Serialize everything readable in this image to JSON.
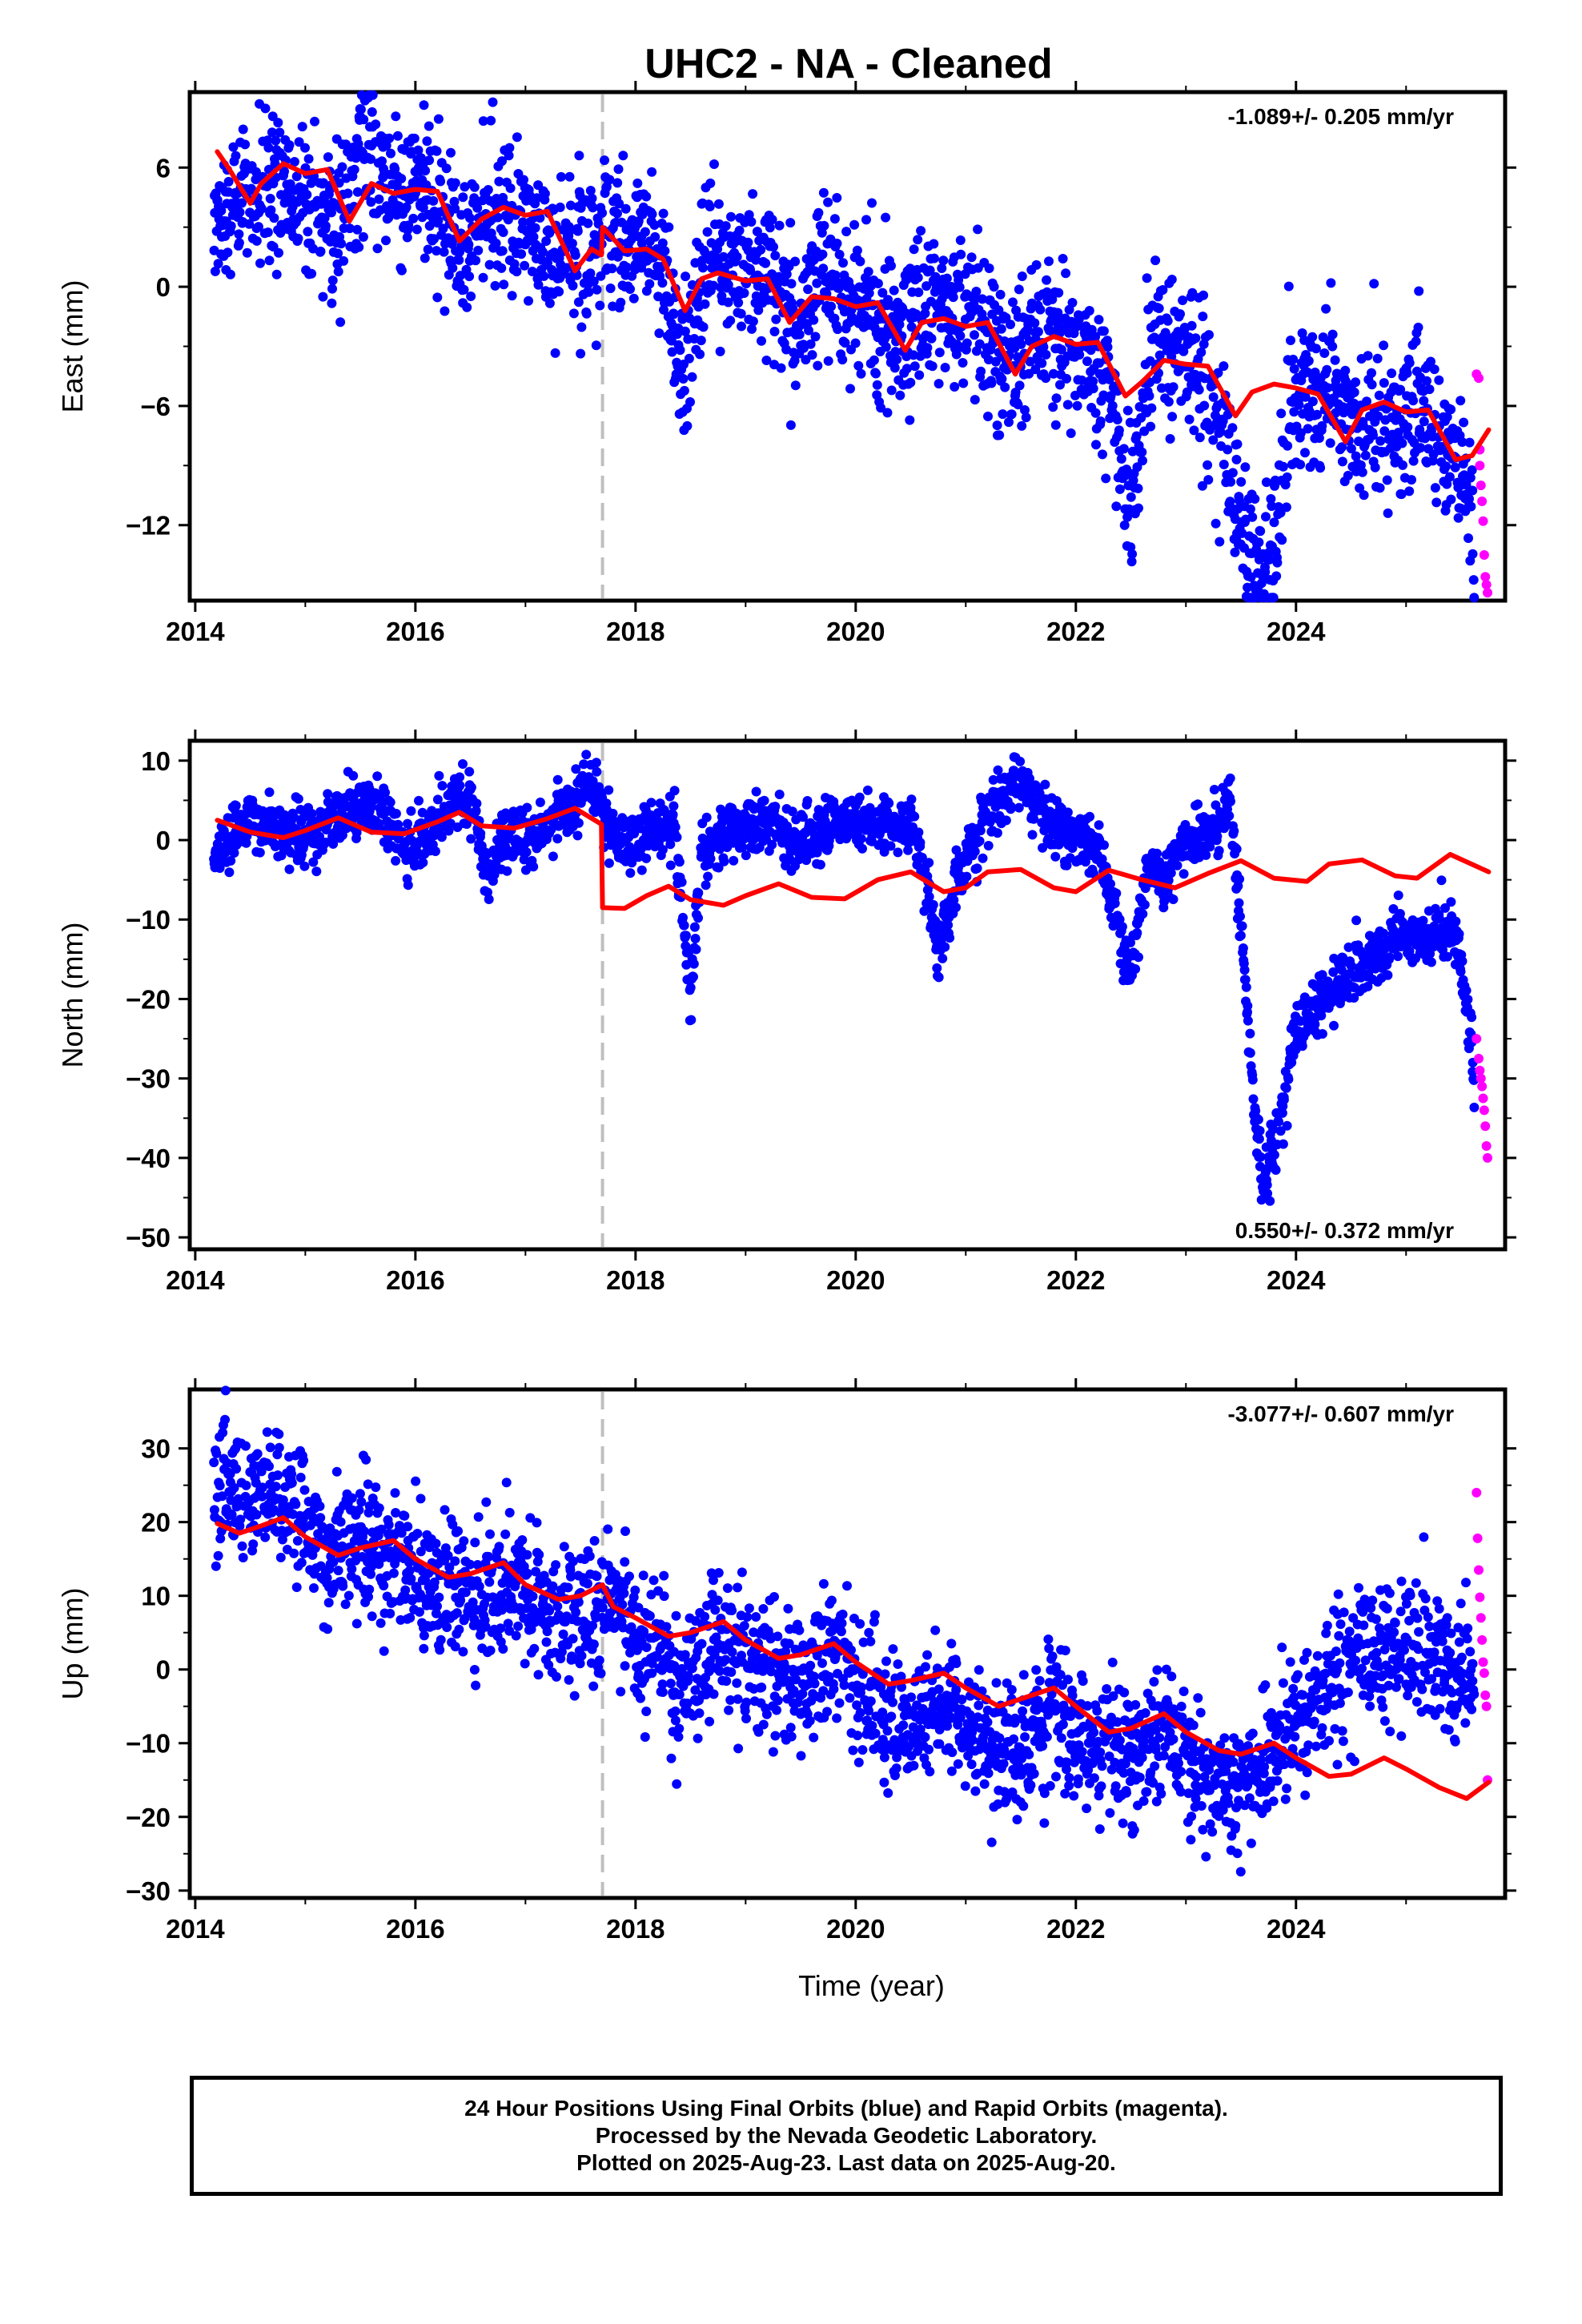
{
  "title": "UHC2  - NA - Cleaned",
  "colors": {
    "final": "#0000ff",
    "rapid": "#ff00ff",
    "model": "#ff0000",
    "offset_line": "#bfbfbf"
  },
  "caption": [
    "24 Hour Positions Using Final Orbits (blue) and Rapid Orbits (magenta).",
    "Processed by the Nevada Geodetic Laboratory.",
    "Plotted on 2025-Aug-23. Last data on 2025-Aug-20."
  ],
  "chart_data": [
    {
      "type": "scatter",
      "name": "east",
      "ylabel": "East (mm)",
      "xlabel": "",
      "xlim": [
        2013.95,
        2025.9
      ],
      "ylim": [
        -15.8,
        9.8
      ],
      "xticks": [
        2014,
        2016,
        2018,
        2020,
        2022,
        2024
      ],
      "yticks": [
        6,
        0,
        -6,
        -12
      ],
      "rate": "-1.089+/- 0.205 mm/yr",
      "rate_position": "top-right",
      "offset_epochs": [
        2017.7
      ],
      "model": {
        "x": [
          2014.2,
          2014.3,
          2014.5,
          2014.6,
          2014.8,
          2015.0,
          2015.2,
          2015.4,
          2015.6,
          2015.8,
          2016.0,
          2016.2,
          2016.4,
          2016.6,
          2016.8,
          2017.0,
          2017.2,
          2017.45,
          2017.6,
          2017.69,
          2017.7,
          2017.9,
          2018.1,
          2018.25,
          2018.45,
          2018.6,
          2018.75,
          2019.0,
          2019.2,
          2019.4,
          2019.6,
          2019.8,
          2020.0,
          2020.2,
          2020.45,
          2020.6,
          2020.8,
          2021.0,
          2021.2,
          2021.45,
          2021.6,
          2021.8,
          2022.0,
          2022.2,
          2022.45,
          2022.6,
          2022.8,
          2023.0,
          2023.2,
          2023.45,
          2023.6,
          2023.8,
          2024.0,
          2024.2,
          2024.45,
          2024.6,
          2024.8,
          2025.0,
          2025.2,
          2025.45,
          2025.6,
          2025.75
        ],
        "y": [
          6.8,
          6.0,
          4.2,
          5.2,
          6.2,
          5.7,
          5.9,
          3.3,
          5.2,
          4.7,
          4.9,
          4.8,
          2.3,
          3.4,
          4.0,
          3.6,
          3.8,
          0.8,
          1.9,
          1.6,
          3.0,
          1.8,
          1.9,
          1.4,
          -1.2,
          0.4,
          0.7,
          0.3,
          0.4,
          -1.8,
          -0.5,
          -0.6,
          -1.0,
          -0.8,
          -3.2,
          -1.8,
          -1.6,
          -2.0,
          -1.8,
          -4.4,
          -3.0,
          -2.5,
          -2.9,
          -2.8,
          -5.5,
          -4.8,
          -3.7,
          -3.9,
          -4.0,
          -6.5,
          -5.3,
          -4.9,
          -5.1,
          -5.4,
          -7.8,
          -6.2,
          -5.8,
          -6.3,
          -6.2,
          -8.7,
          -8.5,
          -7.2
        ]
      },
      "data_trend": [
        [
          2014.2,
          3.8
        ],
        [
          2014.7,
          5.0
        ],
        [
          2015.0,
          4.8
        ],
        [
          2015.3,
          3.5
        ],
        [
          2015.6,
          7.5
        ],
        [
          2015.8,
          5.0
        ],
        [
          2016.0,
          4.5
        ],
        [
          2016.2,
          4.0
        ],
        [
          2016.45,
          2.5
        ],
        [
          2016.7,
          3.3
        ],
        [
          2017.0,
          2.8
        ],
        [
          2017.3,
          2.0
        ],
        [
          2017.7,
          2.5
        ],
        [
          2018.0,
          2.3
        ],
        [
          2018.2,
          1.5
        ],
        [
          2018.4,
          -4.0
        ],
        [
          2018.6,
          1.0
        ],
        [
          2018.9,
          1.5
        ],
        [
          2019.3,
          0.0
        ],
        [
          2019.5,
          -2.5
        ],
        [
          2019.7,
          0.5
        ],
        [
          2020.1,
          -1.0
        ],
        [
          2020.4,
          -3.0
        ],
        [
          2020.6,
          -1.0
        ],
        [
          2021.0,
          -2.0
        ],
        [
          2021.4,
          -4.0
        ],
        [
          2021.7,
          -2.0
        ],
        [
          2022.0,
          -3.0
        ],
        [
          2022.3,
          -5.0
        ],
        [
          2022.5,
          -11.0
        ],
        [
          2022.7,
          -2.0
        ],
        [
          2023.0,
          -3.0
        ],
        [
          2023.3,
          -7.0
        ],
        [
          2023.6,
          -14.0
        ],
        [
          2023.8,
          -13.5
        ],
        [
          2023.95,
          -6.0
        ],
        [
          2024.2,
          -5.5
        ],
        [
          2024.5,
          -7.0
        ],
        [
          2024.8,
          -6.5
        ],
        [
          2025.2,
          -6.5
        ],
        [
          2025.4,
          -8.0
        ],
        [
          2025.55,
          -9.5
        ],
        [
          2025.62,
          -14.0
        ]
      ],
      "data_spread": 1.9,
      "rapid": {
        "x": [
          2025.64,
          2025.66,
          2025.67,
          2025.67,
          2025.68,
          2025.69,
          2025.7,
          2025.71,
          2025.72,
          2025.73,
          2025.74
        ],
        "y": [
          -4.4,
          -4.6,
          -8.2,
          -9.0,
          -10.0,
          -10.8,
          -11.8,
          -13.5,
          -14.6,
          -15.0,
          -15.4
        ]
      }
    },
    {
      "type": "scatter",
      "name": "north",
      "ylabel": "North (mm)",
      "xlabel": "",
      "xlim": [
        2013.95,
        2025.9
      ],
      "ylim": [
        -51.5,
        12.5
      ],
      "xticks": [
        2014,
        2016,
        2018,
        2020,
        2022,
        2024
      ],
      "yticks": [
        10,
        0,
        -10,
        -20,
        -30,
        -40,
        -50
      ],
      "rate": "0.550+/- 0.372 mm/yr",
      "rate_position": "bottom-right",
      "offset_epochs": [
        2017.7
      ],
      "model": {
        "x": [
          2014.2,
          2014.5,
          2014.8,
          2015.0,
          2015.3,
          2015.6,
          2015.9,
          2016.2,
          2016.4,
          2016.6,
          2016.9,
          2017.2,
          2017.45,
          2017.69,
          2017.7,
          2017.9,
          2018.1,
          2018.3,
          2018.5,
          2018.8,
          2019.0,
          2019.3,
          2019.6,
          2019.9,
          2020.2,
          2020.5,
          2020.8,
          2021.0,
          2021.2,
          2021.5,
          2021.8,
          2022.0,
          2022.3,
          2022.6,
          2022.9,
          2023.2,
          2023.5,
          2023.8,
          2024.1,
          2024.3,
          2024.6,
          2024.9,
          2025.1,
          2025.4,
          2025.75
        ],
        "y": [
          2.5,
          1.0,
          0.3,
          1.2,
          2.8,
          1.0,
          0.8,
          2.3,
          3.5,
          1.8,
          1.5,
          2.7,
          4.0,
          2.0,
          -8.5,
          -8.6,
          -7.0,
          -5.8,
          -7.5,
          -8.2,
          -7.0,
          -5.5,
          -7.2,
          -7.4,
          -5.0,
          -4.0,
          -6.5,
          -6.0,
          -4.0,
          -3.7,
          -6.0,
          -6.5,
          -3.8,
          -5.0,
          -6.0,
          -4.2,
          -2.6,
          -4.8,
          -5.2,
          -3.0,
          -2.5,
          -4.5,
          -4.8,
          -1.8,
          -4.0
        ]
      },
      "data_trend": [
        [
          2014.2,
          -1.0
        ],
        [
          2014.5,
          3.0
        ],
        [
          2014.8,
          0.5
        ],
        [
          2015.0,
          1.0
        ],
        [
          2015.3,
          3.0
        ],
        [
          2015.6,
          5.0
        ],
        [
          2015.9,
          -1.0
        ],
        [
          2016.1,
          1.0
        ],
        [
          2016.4,
          6.0
        ],
        [
          2016.55,
          3.0
        ],
        [
          2016.65,
          -5.0
        ],
        [
          2016.8,
          0.0
        ],
        [
          2017.1,
          0.0
        ],
        [
          2017.3,
          3.0
        ],
        [
          2017.55,
          7.0
        ],
        [
          2017.75,
          2.0
        ],
        [
          2017.85,
          -1.0
        ],
        [
          2018.1,
          1.0
        ],
        [
          2018.35,
          2.0
        ],
        [
          2018.5,
          -20.0
        ],
        [
          2018.6,
          -2.0
        ],
        [
          2018.9,
          1.0
        ],
        [
          2019.2,
          2.0
        ],
        [
          2019.5,
          0.0
        ],
        [
          2019.8,
          2.5
        ],
        [
          2020.2,
          2.0
        ],
        [
          2020.5,
          2.0
        ],
        [
          2020.65,
          -5.0
        ],
        [
          2020.75,
          -15.0
        ],
        [
          2020.9,
          -6.0
        ],
        [
          2021.1,
          0.0
        ],
        [
          2021.3,
          5.0
        ],
        [
          2021.5,
          8.0
        ],
        [
          2021.7,
          2.0
        ],
        [
          2022.0,
          0.0
        ],
        [
          2022.2,
          -1.0
        ],
        [
          2022.35,
          -9.0
        ],
        [
          2022.5,
          -17.0
        ],
        [
          2022.65,
          -3.0
        ],
        [
          2022.8,
          -5.0
        ],
        [
          2023.0,
          0.0
        ],
        [
          2023.3,
          2.0
        ],
        [
          2023.4,
          6.0
        ],
        [
          2023.5,
          -10.0
        ],
        [
          2023.6,
          -30.0
        ],
        [
          2023.7,
          -44.0
        ],
        [
          2023.85,
          -36.0
        ],
        [
          2024.0,
          -24.0
        ],
        [
          2024.3,
          -19.0
        ],
        [
          2024.6,
          -16.0
        ],
        [
          2024.9,
          -13.0
        ],
        [
          2025.2,
          -12.0
        ],
        [
          2025.45,
          -11.0
        ],
        [
          2025.6,
          -25.0
        ],
        [
          2025.62,
          -35.0
        ]
      ],
      "data_spread": 1.8,
      "rapid": {
        "x": [
          2025.64,
          2025.66,
          2025.67,
          2025.68,
          2025.69,
          2025.7,
          2025.71,
          2025.72,
          2025.73,
          2025.74
        ],
        "y": [
          -25.0,
          -27.5,
          -29.0,
          -30.0,
          -31.0,
          -32.5,
          -34.0,
          -36.0,
          -38.5,
          -40.0
        ]
      }
    },
    {
      "type": "scatter",
      "name": "up",
      "ylabel": "Up (mm)",
      "xlabel": "Time (year)",
      "xlim": [
        2013.95,
        2025.9
      ],
      "ylim": [
        -31.0,
        38.0
      ],
      "xticks": [
        2014,
        2016,
        2018,
        2020,
        2022,
        2024
      ],
      "yticks": [
        30,
        20,
        10,
        0,
        -10,
        -20,
        -30
      ],
      "rate": "-3.077+/- 0.607 mm/yr",
      "rate_position": "top-right",
      "offset_epochs": [
        2017.7
      ],
      "model": {
        "x": [
          2014.2,
          2014.4,
          2014.6,
          2014.8,
          2015.0,
          2015.3,
          2015.5,
          2015.8,
          2016.0,
          2016.3,
          2016.5,
          2016.8,
          2017.0,
          2017.3,
          2017.5,
          2017.7,
          2017.8,
          2018.0,
          2018.3,
          2018.5,
          2018.8,
          2019.0,
          2019.3,
          2019.5,
          2019.8,
          2020.0,
          2020.3,
          2020.5,
          2020.8,
          2021.0,
          2021.3,
          2021.5,
          2021.8,
          2022.0,
          2022.3,
          2022.5,
          2022.8,
          2023.0,
          2023.3,
          2023.5,
          2023.8,
          2024.0,
          2024.3,
          2024.5,
          2024.8,
          2025.0,
          2025.3,
          2025.55,
          2025.75
        ],
        "y": [
          19.8,
          18.5,
          19.5,
          20.6,
          18.0,
          15.5,
          16.5,
          17.5,
          15.0,
          12.5,
          13.0,
          14.5,
          11.5,
          9.5,
          10.0,
          11.5,
          8.5,
          7.0,
          4.5,
          5.0,
          6.5,
          4.0,
          1.5,
          2.0,
          3.5,
          1.0,
          -2.0,
          -1.5,
          -0.5,
          -2.5,
          -5.0,
          -4.0,
          -2.5,
          -5.0,
          -8.5,
          -8.0,
          -6.0,
          -8.5,
          -11.0,
          -11.5,
          -10.0,
          -12.0,
          -14.5,
          -14.2,
          -12.0,
          -13.5,
          -16.0,
          -17.5,
          -15.3
        ]
      },
      "data_trend": [
        [
          2014.2,
          23.0
        ],
        [
          2014.6,
          25.0
        ],
        [
          2014.9,
          23.0
        ],
        [
          2015.2,
          15.0
        ],
        [
          2015.6,
          18.0
        ],
        [
          2016.0,
          13.0
        ],
        [
          2016.5,
          10.0
        ],
        [
          2016.9,
          13.0
        ],
        [
          2017.2,
          7.0
        ],
        [
          2017.5,
          6.0
        ],
        [
          2017.8,
          9.0
        ],
        [
          2018.2,
          2.0
        ],
        [
          2018.4,
          -5.0
        ],
        [
          2018.7,
          5.0
        ],
        [
          2019.0,
          1.0
        ],
        [
          2019.5,
          -3.0
        ],
        [
          2019.8,
          2.0
        ],
        [
          2020.2,
          -4.0
        ],
        [
          2020.5,
          -8.0
        ],
        [
          2020.8,
          -4.0
        ],
        [
          2021.2,
          -10.0
        ],
        [
          2021.5,
          -12.0
        ],
        [
          2021.8,
          -6.0
        ],
        [
          2022.2,
          -11.0
        ],
        [
          2022.5,
          -13.0
        ],
        [
          2022.8,
          -8.0
        ],
        [
          2023.2,
          -15.0
        ],
        [
          2023.5,
          -16.0
        ],
        [
          2023.8,
          -10.0
        ],
        [
          2024.0,
          -6.0
        ],
        [
          2024.3,
          -2.0
        ],
        [
          2024.6,
          2.0
        ],
        [
          2025.0,
          3.0
        ],
        [
          2025.3,
          1.0
        ],
        [
          2025.6,
          -4.0
        ]
      ],
      "data_spread": 4.5,
      "rapid": {
        "x": [
          2025.64,
          2025.65,
          2025.66,
          2025.67,
          2025.68,
          2025.69,
          2025.7,
          2025.71,
          2025.72,
          2025.73,
          2025.74
        ],
        "y": [
          24.0,
          17.8,
          13.5,
          9.8,
          7.0,
          4.0,
          1.0,
          -0.5,
          -3.5,
          -5.0,
          -15.0
        ]
      }
    }
  ]
}
